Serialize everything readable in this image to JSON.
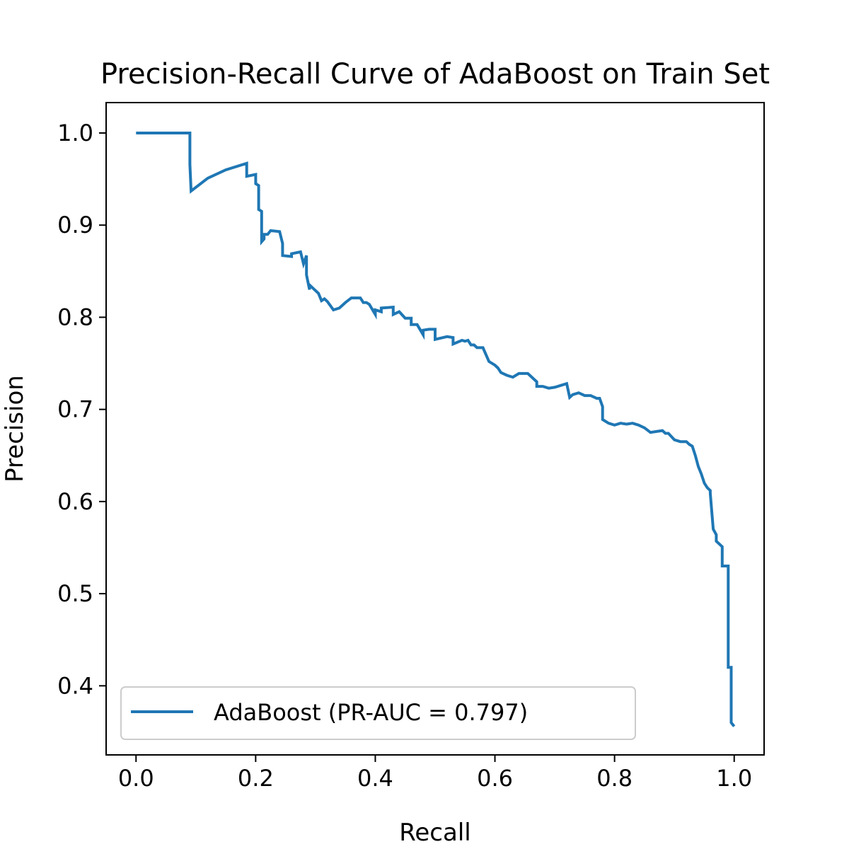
{
  "chart_data": {
    "type": "line",
    "title": "Precision-Recall Curve of AdaBoost on Train Set",
    "xlabel": "Recall",
    "ylabel": "Precision",
    "xlim": [
      -0.05,
      1.05
    ],
    "ylim": [
      0.325,
      1.033
    ],
    "xticks": [
      0.0,
      0.2,
      0.4,
      0.6,
      0.8,
      1.0
    ],
    "xtick_labels": [
      "0.0",
      "0.2",
      "0.4",
      "0.6",
      "0.8",
      "1.0"
    ],
    "yticks": [
      0.4,
      0.5,
      0.6,
      0.7,
      0.8,
      0.9,
      1.0
    ],
    "ytick_labels": [
      "0.4",
      "0.5",
      "0.6",
      "0.7",
      "0.8",
      "0.9",
      "1.0"
    ],
    "grid": false,
    "legend_position": "lower-left",
    "colors": {
      "series": "#1f77b4",
      "axes": "#000000",
      "background": "#ffffff",
      "legend_border": "#cccccc"
    },
    "series": [
      {
        "name": "AdaBoost (PR-AUC = 0.797)",
        "x": [
          0.0,
          0.09,
          0.09,
          0.092,
          0.12,
          0.15,
          0.185,
          0.185,
          0.2,
          0.2,
          0.205,
          0.205,
          0.21,
          0.21,
          0.214,
          0.214,
          0.22,
          0.225,
          0.24,
          0.245,
          0.245,
          0.26,
          0.26,
          0.275,
          0.28,
          0.285,
          0.285,
          0.29,
          0.29,
          0.3,
          0.305,
          0.31,
          0.315,
          0.32,
          0.33,
          0.34,
          0.35,
          0.36,
          0.375,
          0.38,
          0.385,
          0.39,
          0.4,
          0.4,
          0.41,
          0.41,
          0.43,
          0.43,
          0.44,
          0.45,
          0.46,
          0.46,
          0.47,
          0.48,
          0.48,
          0.49,
          0.5,
          0.5,
          0.52,
          0.53,
          0.53,
          0.545,
          0.55,
          0.555,
          0.56,
          0.565,
          0.57,
          0.58,
          0.59,
          0.6,
          0.605,
          0.61,
          0.62,
          0.63,
          0.64,
          0.655,
          0.67,
          0.67,
          0.68,
          0.69,
          0.7,
          0.72,
          0.725,
          0.73,
          0.74,
          0.75,
          0.76,
          0.77,
          0.775,
          0.78,
          0.78,
          0.79,
          0.8,
          0.81,
          0.82,
          0.83,
          0.84,
          0.85,
          0.86,
          0.87,
          0.88,
          0.885,
          0.89,
          0.9,
          0.91,
          0.92,
          0.925,
          0.93,
          0.935,
          0.94,
          0.945,
          0.95,
          0.955,
          0.96,
          0.96,
          0.965,
          0.97,
          0.97,
          0.98,
          0.98,
          0.99,
          0.99,
          0.995,
          0.995,
          1.0
        ],
        "y": [
          1.0,
          1.0,
          0.966,
          0.937,
          0.951,
          0.96,
          0.967,
          0.953,
          0.955,
          0.945,
          0.943,
          0.917,
          0.915,
          0.882,
          0.885,
          0.89,
          0.89,
          0.894,
          0.893,
          0.88,
          0.867,
          0.866,
          0.869,
          0.871,
          0.858,
          0.867,
          0.846,
          0.83,
          0.835,
          0.829,
          0.826,
          0.818,
          0.82,
          0.817,
          0.808,
          0.81,
          0.816,
          0.821,
          0.821,
          0.816,
          0.816,
          0.814,
          0.803,
          0.808,
          0.806,
          0.81,
          0.811,
          0.803,
          0.806,
          0.799,
          0.799,
          0.792,
          0.792,
          0.781,
          0.786,
          0.787,
          0.787,
          0.776,
          0.779,
          0.778,
          0.771,
          0.775,
          0.774,
          0.775,
          0.77,
          0.77,
          0.767,
          0.767,
          0.752,
          0.748,
          0.745,
          0.74,
          0.737,
          0.735,
          0.739,
          0.739,
          0.73,
          0.725,
          0.725,
          0.723,
          0.724,
          0.728,
          0.713,
          0.716,
          0.718,
          0.715,
          0.715,
          0.712,
          0.712,
          0.703,
          0.689,
          0.685,
          0.683,
          0.685,
          0.684,
          0.685,
          0.683,
          0.68,
          0.675,
          0.676,
          0.677,
          0.674,
          0.674,
          0.667,
          0.665,
          0.665,
          0.662,
          0.66,
          0.65,
          0.638,
          0.63,
          0.62,
          0.615,
          0.612,
          0.609,
          0.57,
          0.564,
          0.557,
          0.551,
          0.53,
          0.53,
          0.42,
          0.42,
          0.36,
          0.356
        ]
      }
    ]
  }
}
